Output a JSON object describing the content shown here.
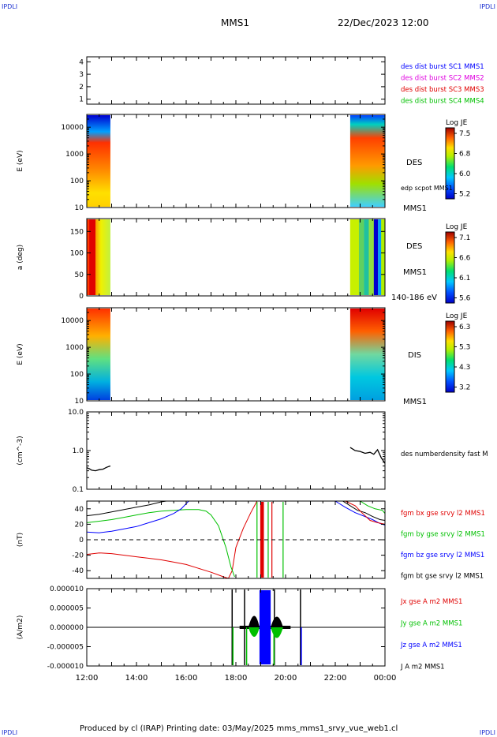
{
  "corners": {
    "top_left": "IPDLI",
    "top_right": "IPDLI",
    "bottom_left": "IPDLI",
    "bottom_right": "IPDLI"
  },
  "header": {
    "spacecraft": "MMS1",
    "datetime": "22/Dec/2023 12:00"
  },
  "footer": {
    "text": "Produced by cl (IRAP)   Printing date: 03/May/2025   mms_mms1_srvy_vue_web1.cl"
  },
  "colors": {
    "blue": "#0000ff",
    "magenta": "#e000e0",
    "red": "#e00000",
    "green": "#00c000",
    "black": "#000000"
  },
  "chart_data": [
    {
      "type": "line",
      "panel": "burst",
      "yticks": [
        "1",
        "2",
        "3",
        "4"
      ],
      "legend": [
        {
          "label": "des dist burst SC1 MMS1",
          "color": "#0000ff"
        },
        {
          "label": "des dist burst SC2 MMS2",
          "color": "#e000e0"
        },
        {
          "label": "des dist burst SC3 MMS3",
          "color": "#e00000"
        },
        {
          "label": "des dist burst SC4 MMS4",
          "color": "#00c000"
        }
      ]
    },
    {
      "type": "heatmap",
      "panel": "des-energy",
      "ylabel": "E (eV)",
      "yticks": [
        "10",
        "100",
        "1000",
        "10000"
      ],
      "scale": "log",
      "colorbar": {
        "label": "Log JE",
        "ticks": [
          "7.5",
          "6.8",
          "6.0",
          "5.2"
        ],
        "range": [
          5.2,
          7.5
        ]
      },
      "side_labels": [
        "DES",
        "edp scpot MMS1",
        "MMS1"
      ],
      "data_windows_hours": [
        [
          12.0,
          12.95
        ],
        [
          22.6,
          24.0
        ]
      ]
    },
    {
      "type": "heatmap",
      "panel": "des-pitch",
      "ylabel": "a (deg)",
      "yticks": [
        "0",
        "50",
        "100",
        "150"
      ],
      "colorbar": {
        "label": "Log JE",
        "ticks": [
          "7.1",
          "6.6",
          "6.1",
          "5.6"
        ],
        "range": [
          5.6,
          7.1
        ]
      },
      "side_labels": [
        "DES",
        "MMS1",
        "140-186 eV"
      ],
      "data_windows_hours": [
        [
          12.0,
          12.95
        ],
        [
          22.6,
          24.0
        ]
      ]
    },
    {
      "type": "heatmap",
      "panel": "dis-energy",
      "ylabel": "E (eV)",
      "yticks": [
        "10",
        "100",
        "1000",
        "10000"
      ],
      "scale": "log",
      "colorbar": {
        "label": "Log JE",
        "ticks": [
          "6.3",
          "5.3",
          "4.3",
          "3.2"
        ],
        "range": [
          3.2,
          6.3
        ]
      },
      "side_labels": [
        "DIS",
        "MMS1"
      ],
      "data_windows_hours": [
        [
          12.0,
          12.95
        ],
        [
          22.6,
          24.0
        ]
      ]
    },
    {
      "type": "line",
      "panel": "density",
      "ylabel": "(cm^-3)",
      "yticks": [
        "0.1",
        "1.0",
        "10.0"
      ],
      "scale": "log",
      "ylim": [
        0.1,
        10
      ],
      "series": [
        {
          "name": "des numberdensity fast M",
          "color": "#000000",
          "x": [
            12.0,
            12.1,
            12.2,
            12.35,
            12.5,
            12.65,
            12.8,
            12.95,
            22.6,
            22.8,
            23.0,
            23.2,
            23.4,
            23.55,
            23.7,
            23.85,
            24.0
          ],
          "y": [
            0.36,
            0.34,
            0.31,
            0.3,
            0.32,
            0.33,
            0.37,
            0.4,
            1.2,
            1.0,
            0.95,
            0.85,
            0.9,
            0.8,
            1.05,
            0.65,
            0.47
          ]
        }
      ]
    },
    {
      "type": "line",
      "panel": "fgm",
      "ylabel": "(nT)",
      "yticks": [
        "-40",
        "-20",
        "0",
        "20",
        "40"
      ],
      "ylim": [
        -50,
        50
      ],
      "series": [
        {
          "name": "fgm bx gse srvy l2 MMS1",
          "color": "#e00000",
          "x": [
            12.0,
            12.5,
            13.0,
            13.5,
            14.0,
            14.5,
            15.0,
            15.5,
            16.0,
            16.5,
            17.0,
            17.5,
            17.7,
            17.85,
            18.0,
            18.3,
            18.6,
            18.85
          ],
          "y": [
            -19,
            -17,
            -18,
            -20,
            -22,
            -24,
            -26,
            -29,
            -32,
            -37,
            -42,
            -48,
            -50,
            -40,
            -10,
            15,
            35,
            50
          ]
        },
        {
          "name": "fgm by gse srvy l2 MMS1",
          "color": "#00c000",
          "x": [
            12.0,
            12.5,
            13.0,
            13.5,
            14.0,
            14.5,
            15.0,
            15.5,
            16.0,
            16.5,
            16.8,
            17.0,
            17.3,
            17.6,
            17.8,
            17.95
          ],
          "y": [
            22,
            24,
            26,
            29,
            32,
            35,
            37,
            38,
            39,
            39,
            37,
            32,
            18,
            -10,
            -35,
            -48
          ]
        },
        {
          "name": "fgm bz gse srvy l2 MMS1",
          "color": "#0000ff",
          "x": [
            12.0,
            12.5,
            13.0,
            13.5,
            14.0,
            14.5,
            15.0,
            15.5,
            15.8,
            16.1
          ],
          "y": [
            10,
            9,
            11,
            14,
            17,
            22,
            27,
            34,
            40,
            50
          ]
        },
        {
          "name": "fgm bt gse srvy l2 MMS1",
          "color": "#000000",
          "x": [
            12.0,
            12.5,
            13.0,
            13.5,
            14.0,
            14.5,
            15.0,
            15.2
          ],
          "y": [
            31,
            33,
            36,
            39,
            42,
            45,
            49,
            50
          ]
        }
      ]
    },
    {
      "type": "line",
      "panel": "current",
      "ylabel": "(A/m2)",
      "yticks": [
        "-0.000010",
        "-0.000005",
        "0.000000",
        "0.000005",
        "0.000010"
      ],
      "ylim": [
        -1e-05,
        1e-05
      ],
      "xlabel_ticks": [
        "12:00",
        "14:00",
        "16:00",
        "18:00",
        "20:00",
        "22:00",
        "00:00"
      ],
      "xlim": [
        12,
        24
      ],
      "series": [
        {
          "name": "Jx gse A m2 MMS1",
          "color": "#e00000"
        },
        {
          "name": "Jy gse A m2 MMS1",
          "color": "#00c000"
        },
        {
          "name": "Jz gse A m2 MMS1",
          "color": "#0000ff"
        },
        {
          "name": "J A m2 MMS1",
          "color": "#000000"
        }
      ]
    }
  ]
}
